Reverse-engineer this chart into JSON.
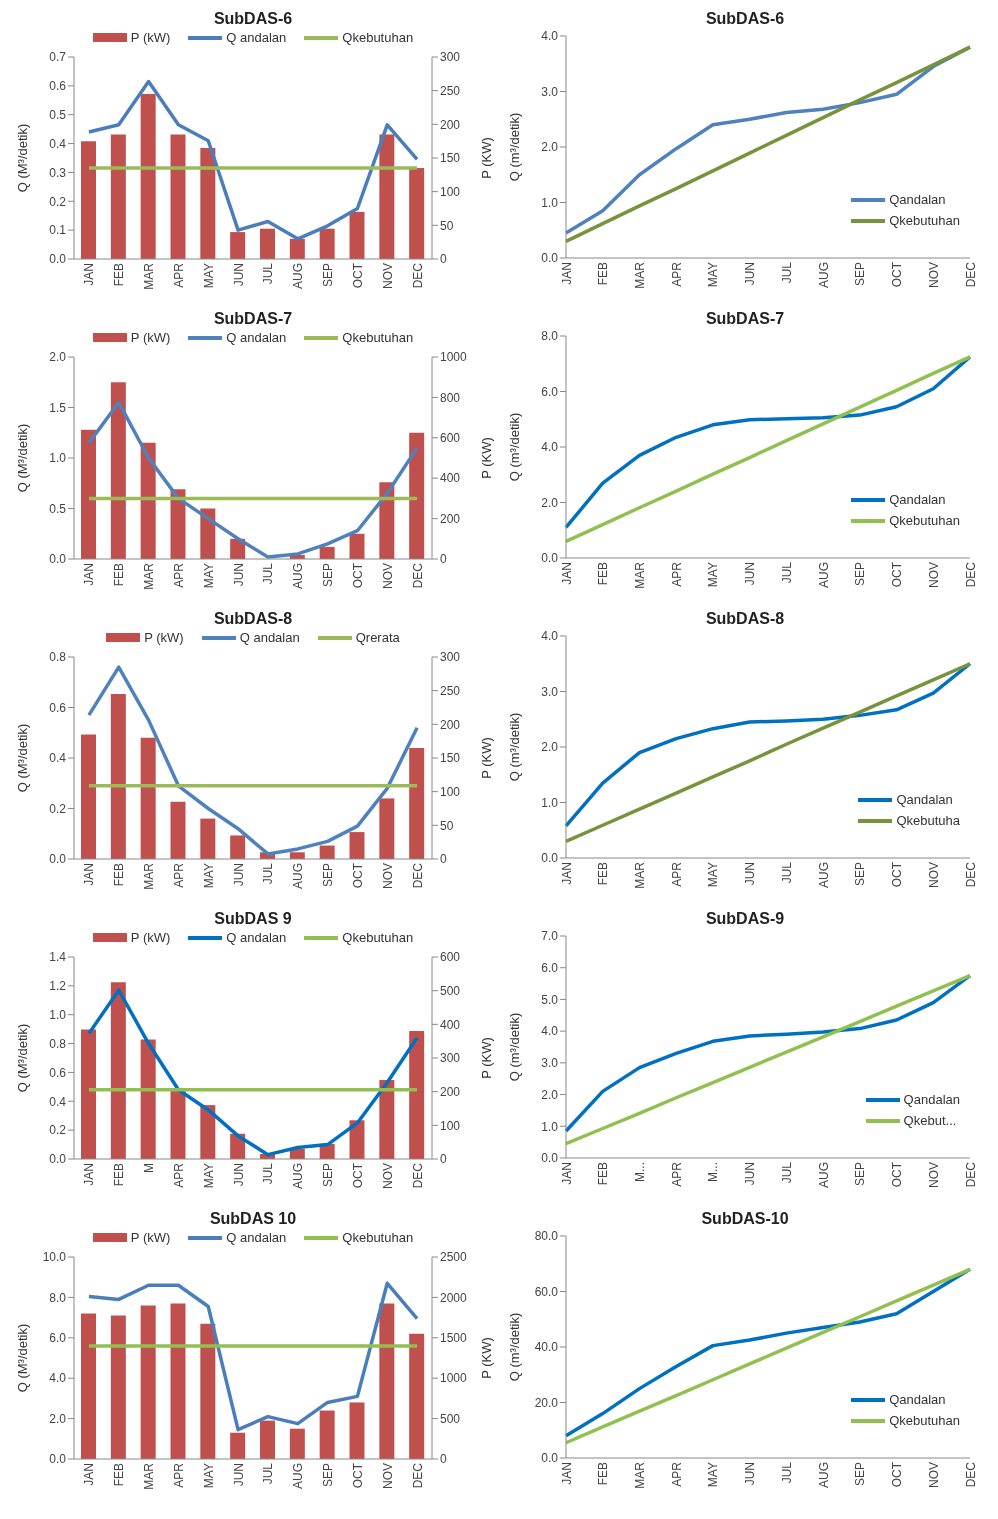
{
  "chart_data": [
    {
      "type": "bar",
      "title": "SubDAS-6",
      "ylabel": "Q (M³/detik)",
      "y2label": "P (KW)",
      "categories": [
        "JAN",
        "FEB",
        "MAR",
        "APR",
        "MAY",
        "JUN",
        "JUL",
        "AUG",
        "SEP",
        "OCT",
        "NOV",
        "DEC"
      ],
      "legend": "top",
      "ylim": [
        0,
        0.7
      ],
      "yticks": [
        {
          "value": 0,
          "label": "0.0"
        },
        0.1,
        0.2,
        0.3,
        0.4,
        0.5,
        0.6,
        0.7
      ],
      "y2lim": [
        0,
        300
      ],
      "y2ticks": [
        0,
        50,
        100,
        150,
        200,
        250,
        300
      ],
      "series": [
        {
          "type": "bar",
          "axis": "y2",
          "name": "P (kW)",
          "color": "#c0504d",
          "values": [
            175,
            185,
            245,
            185,
            165,
            40,
            45,
            30,
            45,
            70,
            185,
            135
          ]
        },
        {
          "type": "line",
          "name": "Q andalan",
          "color": "#4a7ebb",
          "values": [
            0.44,
            0.465,
            0.615,
            0.465,
            0.41,
            0.1,
            0.13,
            0.07,
            0.115,
            0.175,
            0.465,
            0.345
          ]
        },
        {
          "type": "line",
          "name": "Qkebutuhan",
          "color": "#9bbb59",
          "values": [
            0.315,
            0.315,
            0.315,
            0.315,
            0.315,
            0.315,
            0.315,
            0.315,
            0.315,
            0.315,
            0.315,
            0.315
          ]
        }
      ]
    },
    {
      "type": "line",
      "title": "SubDAS-6",
      "ylabel": "Q (m³/detik)",
      "categories": [
        "JAN",
        "FEB",
        "MAR",
        "APR",
        "MAY",
        "JUN",
        "JUL",
        "AUG",
        "SEP",
        "OCT",
        "NOV",
        "DEC"
      ],
      "legend": "bottom right",
      "ylim": [
        0,
        4
      ],
      "yticks": [
        {
          "value": 0,
          "label": "0.0"
        },
        {
          "value": 1,
          "label": "1.0"
        },
        {
          "value": 2,
          "label": "2.0"
        },
        {
          "value": 3,
          "label": "3.0"
        },
        {
          "value": 4,
          "label": "4.0"
        }
      ],
      "series": [
        {
          "name": "Qandalan",
          "color": "#4f81bd",
          "values": [
            0.45,
            0.85,
            1.5,
            1.97,
            2.4,
            2.5,
            2.62,
            2.68,
            2.8,
            2.95,
            3.45,
            3.8
          ]
        },
        {
          "name": "Qkebutuhan",
          "color": "#77933c",
          "values": [
            0.3,
            0.62,
            0.94,
            1.25,
            1.57,
            1.89,
            2.21,
            2.53,
            2.85,
            3.16,
            3.48,
            3.8
          ]
        }
      ]
    },
    {
      "type": "bar",
      "title": "SubDAS-7",
      "ylabel": "Q (M³/detik)",
      "y2label": "P (KW)",
      "categories": [
        "JAN",
        "FEB",
        "MAR",
        "APR",
        "MAY",
        "JUN",
        "JUL",
        "AUG",
        "SEP",
        "OCT",
        "NOV",
        "DEC"
      ],
      "legend": "top",
      "ylim": [
        0,
        2
      ],
      "yticks": [
        {
          "value": 0,
          "label": "0.0"
        },
        0.5,
        {
          "value": 1,
          "label": "1.0"
        },
        1.5,
        {
          "value": 2,
          "label": "2.0"
        }
      ],
      "y2lim": [
        0,
        1000
      ],
      "y2ticks": [
        0,
        200,
        400,
        600,
        800,
        1000
      ],
      "series": [
        {
          "type": "bar",
          "axis": "y2",
          "name": "P (kW)",
          "color": "#c0504d",
          "values": [
            640,
            875,
            575,
            345,
            250,
            100,
            null,
            20,
            60,
            125,
            380,
            625
          ]
        },
        {
          "type": "line",
          "name": "Q andalan",
          "color": "#4f81bd",
          "values": [
            1.15,
            1.55,
            1.0,
            0.6,
            0.4,
            0.2,
            0.02,
            0.05,
            0.15,
            0.28,
            0.65,
            1.1
          ]
        },
        {
          "type": "line",
          "name": "Qkebutuhan",
          "color": "#9bbb59",
          "values": [
            0.6,
            0.6,
            0.6,
            0.6,
            0.6,
            0.6,
            0.6,
            0.6,
            0.6,
            0.6,
            0.6,
            0.6
          ]
        }
      ]
    },
    {
      "type": "line",
      "title": "SubDAS-7",
      "ylabel": "Q (m³/detik)",
      "categories": [
        "JAN",
        "FEB",
        "MAR",
        "APR",
        "MAY",
        "JUN",
        "JUL",
        "AUG",
        "SEP",
        "OCT",
        "NOV",
        "DEC"
      ],
      "legend": "bottom right",
      "ylim": [
        0,
        8
      ],
      "yticks": [
        {
          "value": 0,
          "label": "0.0"
        },
        {
          "value": 2,
          "label": "2.0"
        },
        {
          "value": 4,
          "label": "4.0"
        },
        {
          "value": 6,
          "label": "6.0"
        },
        {
          "value": 8,
          "label": "8.0"
        }
      ],
      "series": [
        {
          "name": "Qandalan",
          "color": "#0070c0",
          "values": [
            1.1,
            2.7,
            3.7,
            4.35,
            4.8,
            4.98,
            5.02,
            5.05,
            5.15,
            5.45,
            6.1,
            7.25
          ]
        },
        {
          "name": "Qkebutuhan",
          "color": "#92c050",
          "values": [
            0.6,
            1.2,
            1.81,
            2.41,
            3.02,
            3.62,
            4.23,
            4.83,
            5.44,
            6.04,
            6.65,
            7.25
          ]
        }
      ]
    },
    {
      "type": "bar",
      "title": "SubDAS-8",
      "ylabel": "Q (M³/detik)",
      "y2label": "P (KW)",
      "categories": [
        "JAN",
        "FEB",
        "MAR",
        "APR",
        "MAY",
        "JUN",
        "JUL",
        "AUG",
        "SEP",
        "OCT",
        "NOV",
        "DEC"
      ],
      "legend": "top",
      "ylim": [
        0,
        0.8
      ],
      "yticks": [
        {
          "value": 0,
          "label": "0.0"
        },
        0.2,
        0.4,
        0.6,
        0.8
      ],
      "y2lim": [
        0,
        300
      ],
      "y2ticks": [
        0,
        50,
        100,
        150,
        200,
        250,
        300
      ],
      "series": [
        {
          "type": "bar",
          "axis": "y2",
          "name": "P (kW)",
          "color": "#c0504d",
          "values": [
            185,
            245,
            180,
            85,
            60,
            35,
            10,
            10,
            20,
            40,
            90,
            165
          ]
        },
        {
          "type": "line",
          "name": "Q andalan",
          "color": "#4f81bd",
          "values": [
            0.57,
            0.76,
            0.55,
            0.29,
            0.2,
            0.12,
            0.02,
            0.04,
            0.07,
            0.13,
            0.28,
            0.52
          ]
        },
        {
          "type": "line",
          "name": "Qrerata",
          "color": "#9bbb59",
          "values": [
            0.29,
            0.29,
            0.29,
            0.29,
            0.29,
            0.29,
            0.29,
            0.29,
            0.29,
            0.29,
            0.29,
            0.29
          ]
        }
      ]
    },
    {
      "type": "line",
      "title": "SubDAS-8",
      "ylabel": "Q (m³/detik)",
      "categories": [
        "JAN",
        "FEB",
        "MAR",
        "APR",
        "MAY",
        "JUN",
        "JUL",
        "AUG",
        "SEP",
        "OCT",
        "NOV",
        "DEC"
      ],
      "legend": "bottom right",
      "ylim": [
        0,
        4
      ],
      "yticks": [
        {
          "value": 0,
          "label": "0.0"
        },
        {
          "value": 1,
          "label": "1.0"
        },
        {
          "value": 2,
          "label": "2.0"
        },
        {
          "value": 3,
          "label": "3.0"
        },
        {
          "value": 4,
          "label": "4.0"
        }
      ],
      "series": [
        {
          "name": "Qandalan",
          "color": "#0070c0",
          "values": [
            0.58,
            1.35,
            1.9,
            2.15,
            2.33,
            2.45,
            2.47,
            2.5,
            2.57,
            2.67,
            2.97,
            3.5
          ]
        },
        {
          "name": "Qkebutuha",
          "color": "#77933c",
          "values": [
            0.3,
            0.59,
            0.88,
            1.17,
            1.46,
            1.75,
            2.05,
            2.34,
            2.63,
            2.92,
            3.21,
            3.5
          ]
        }
      ]
    },
    {
      "type": "bar",
      "title": "SubDAS 9",
      "ylabel": "Q (M³/detik)",
      "y2label": "P (KW)",
      "categories": [
        "JAN",
        "FEB",
        "M",
        "APR",
        "MAY",
        "JUN",
        "JUL",
        "AUG",
        "SEP",
        "OCT",
        "NOV",
        "DEC"
      ],
      "legend": "top",
      "ylim": [
        0,
        1.4
      ],
      "yticks": [
        {
          "value": 0,
          "label": "0.0"
        },
        0.2,
        0.4,
        0.6,
        0.8,
        {
          "value": 1,
          "label": "1.0"
        },
        1.2,
        1.4
      ],
      "y2lim": [
        0,
        600
      ],
      "y2ticks": [
        0,
        100,
        200,
        300,
        400,
        500,
        600
      ],
      "series": [
        {
          "type": "bar",
          "axis": "y2",
          "name": "P (kW)",
          "color": "#c0504d",
          "values": [
            385,
            525,
            355,
            205,
            160,
            75,
            15,
            30,
            45,
            115,
            235,
            380
          ]
        },
        {
          "type": "line",
          "name": "Q andalan",
          "color": "#0070c0",
          "values": [
            0.87,
            1.17,
            0.8,
            0.48,
            0.34,
            0.16,
            0.03,
            0.08,
            0.1,
            0.25,
            0.53,
            0.84
          ]
        },
        {
          "type": "line",
          "name": "Qkebutuhan",
          "color": "#92c050",
          "values": [
            0.48,
            0.48,
            0.48,
            0.48,
            0.48,
            0.48,
            0.48,
            0.48,
            0.48,
            0.48,
            0.48,
            0.48
          ]
        }
      ]
    },
    {
      "type": "line",
      "title": "SubDAS-9",
      "ylabel": "Q (m³/detik)",
      "categories": [
        "JAN",
        "FEB",
        "M...",
        "APR",
        "M...",
        "JUN",
        "JUL",
        "AUG",
        "SEP",
        "OCT",
        "NOV",
        "DEC"
      ],
      "legend": "bottom right",
      "ylim": [
        0,
        7
      ],
      "yticks": [
        {
          "value": 0,
          "label": "0.0"
        },
        {
          "value": 1,
          "label": "1.0"
        },
        {
          "value": 2,
          "label": "2.0"
        },
        {
          "value": 3,
          "label": "3.0"
        },
        {
          "value": 4,
          "label": "4.0"
        },
        {
          "value": 5,
          "label": "5.0"
        },
        {
          "value": 6,
          "label": "6.0"
        },
        {
          "value": 7,
          "label": "7.0"
        }
      ],
      "series": [
        {
          "name": "Qandalan",
          "color": "#0070c0",
          "values": [
            0.85,
            2.1,
            2.85,
            3.3,
            3.68,
            3.85,
            3.9,
            3.97,
            4.08,
            4.35,
            4.9,
            5.75
          ]
        },
        {
          "name": "Qkebut...",
          "color": "#92c050",
          "values": [
            0.45,
            0.93,
            1.41,
            1.9,
            2.38,
            2.86,
            3.34,
            3.82,
            4.3,
            4.79,
            5.27,
            5.75
          ]
        }
      ]
    },
    {
      "type": "bar",
      "title": "SubDAS 10",
      "ylabel": "Q (M³/detik)",
      "y2label": "P (KW)",
      "categories": [
        "JAN",
        "FEB",
        "MAR",
        "APR",
        "MAY",
        "JUN",
        "JUL",
        "AUG",
        "SEP",
        "OCT",
        "NOV",
        "DEC"
      ],
      "legend": "top",
      "ylim": [
        0,
        10
      ],
      "yticks": [
        {
          "value": 0,
          "label": "0.0"
        },
        {
          "value": 2,
          "label": "2.0"
        },
        {
          "value": 4,
          "label": "4.0"
        },
        {
          "value": 6,
          "label": "6.0"
        },
        {
          "value": 8,
          "label": "8.0"
        },
        {
          "value": 10,
          "label": "10.0"
        }
      ],
      "y2lim": [
        0,
        2500
      ],
      "y2ticks": [
        0,
        500,
        1000,
        1500,
        2000,
        2500
      ],
      "series": [
        {
          "type": "bar",
          "axis": "y2",
          "name": "P (kW)",
          "color": "#c0504d",
          "values": [
            1800,
            1775,
            1900,
            1925,
            1675,
            325,
            475,
            375,
            600,
            700,
            1925,
            1550
          ]
        },
        {
          "type": "line",
          "name": "Q andalan",
          "color": "#4a7ebb",
          "values": [
            8.05,
            7.9,
            8.6,
            8.6,
            7.55,
            1.45,
            2.1,
            1.75,
            2.8,
            3.1,
            8.7,
            6.95
          ]
        },
        {
          "type": "line",
          "name": "Qkebutuhan",
          "color": "#92c050",
          "values": [
            5.6,
            5.6,
            5.6,
            5.6,
            5.6,
            5.6,
            5.6,
            5.6,
            5.6,
            5.6,
            5.6,
            5.6
          ]
        }
      ]
    },
    {
      "type": "line",
      "title": "SubDAS-10",
      "ylabel": "Q (m³/detik)",
      "categories": [
        "JAN",
        "FEB",
        "MAR",
        "APR",
        "MAY",
        "JUN",
        "JUL",
        "AUG",
        "SEP",
        "OCT",
        "NOV",
        "DEC"
      ],
      "legend": "bottom right",
      "ylim": [
        0,
        80
      ],
      "yticks": [
        {
          "value": 0,
          "label": "0.0"
        },
        {
          "value": 20,
          "label": "20.0"
        },
        {
          "value": 40,
          "label": "40.0"
        },
        {
          "value": 60,
          "label": "60.0"
        },
        {
          "value": 80,
          "label": "80.0"
        }
      ],
      "series": [
        {
          "name": "Qandalan",
          "color": "#0070c0",
          "values": [
            8,
            16,
            25,
            33,
            40.5,
            42.5,
            45,
            47,
            49,
            52,
            60,
            68
          ]
        },
        {
          "name": "Qkebutuhan",
          "color": "#92c050",
          "values": [
            5.5,
            11.2,
            16.9,
            22.5,
            28.2,
            33.9,
            39.6,
            45.3,
            50.9,
            56.6,
            62.3,
            68
          ]
        }
      ]
    }
  ]
}
